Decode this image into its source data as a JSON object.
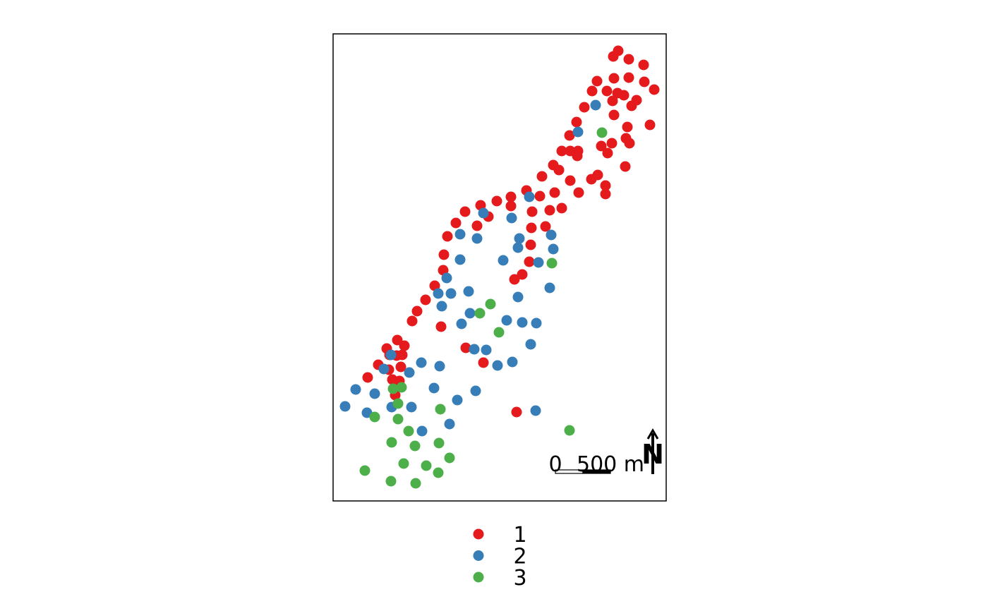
{
  "colors": {
    "1": "#E41A1C",
    "2": "#377EB8",
    "3": "#4DAF4A"
  },
  "scale_bar": {
    "label_zero": "0",
    "label_value": "500 m"
  },
  "north_arrow": {
    "label": "N"
  },
  "legend": {
    "items": [
      {
        "label": "1",
        "color": "#E41A1C"
      },
      {
        "label": "2",
        "color": "#377EB8"
      },
      {
        "label": "3",
        "color": "#4DAF4A"
      }
    ]
  },
  "points": {
    "1": [
      [
        876,
        72
      ],
      [
        869,
        80
      ],
      [
        891,
        84
      ],
      [
        912,
        92
      ],
      [
        846,
        115
      ],
      [
        870,
        111
      ],
      [
        891,
        110
      ],
      [
        913,
        116
      ],
      [
        839,
        129
      ],
      [
        860,
        129
      ],
      [
        875,
        132
      ],
      [
        884,
        135
      ],
      [
        868,
        143
      ],
      [
        902,
        142
      ],
      [
        927,
        127
      ],
      [
        895,
        150
      ],
      [
        828,
        152
      ],
      [
        870,
        163
      ],
      [
        817,
        173
      ],
      [
        889,
        180
      ],
      [
        921,
        177
      ],
      [
        807,
        192
      ],
      [
        887,
        196
      ],
      [
        892,
        203
      ],
      [
        852,
        207
      ],
      [
        867,
        203
      ],
      [
        861,
        217
      ],
      [
        796,
        214
      ],
      [
        808,
        214
      ],
      [
        819,
        214
      ],
      [
        818,
        221
      ],
      [
        886,
        236
      ],
      [
        784,
        234
      ],
      [
        792,
        241
      ],
      [
        768,
        250
      ],
      [
        838,
        254
      ],
      [
        847,
        248
      ],
      [
        808,
        256
      ],
      [
        858,
        263
      ],
      [
        858,
        275
      ],
      [
        820,
        273
      ],
      [
        786,
        273
      ],
      [
        746,
        270
      ],
      [
        724,
        279
      ],
      [
        765,
        278
      ],
      [
        704,
        285
      ],
      [
        681,
        291
      ],
      [
        724,
        292
      ],
      [
        659,
        300
      ],
      [
        692,
        307
      ],
      [
        754,
        300
      ],
      [
        779,
        298
      ],
      [
        796,
        295
      ],
      [
        646,
        316
      ],
      [
        676,
        320
      ],
      [
        753,
        323
      ],
      [
        773,
        321
      ],
      [
        634,
        335
      ],
      [
        752,
        347
      ],
      [
        629,
        361
      ],
      [
        750,
        371
      ],
      [
        628,
        383
      ],
      [
        740,
        389
      ],
      [
        729,
        396
      ],
      [
        616,
        405
      ],
      [
        603,
        425
      ],
      [
        591,
        441
      ],
      [
        584,
        455
      ],
      [
        625,
        463
      ],
      [
        563,
        482
      ],
      [
        548,
        494
      ],
      [
        573,
        490
      ],
      [
        660,
        493
      ],
      [
        570,
        503
      ],
      [
        562,
        504
      ],
      [
        552,
        503
      ],
      [
        685,
        514
      ],
      [
        536,
        517
      ],
      [
        551,
        524
      ],
      [
        568,
        520
      ],
      [
        521,
        535
      ],
      [
        556,
        538
      ],
      [
        566,
        540
      ],
      [
        560,
        560
      ],
      [
        732,
        584
      ]
    ],
    "2": [
      [
        844,
        149
      ],
      [
        819,
        187
      ],
      [
        750,
        279
      ],
      [
        685,
        302
      ],
      [
        725,
        309
      ],
      [
        652,
        332
      ],
      [
        676,
        338
      ],
      [
        736,
        338
      ],
      [
        781,
        333
      ],
      [
        734,
        351
      ],
      [
        784,
        353
      ],
      [
        652,
        368
      ],
      [
        713,
        369
      ],
      [
        763,
        372
      ],
      [
        633,
        394
      ],
      [
        779,
        408
      ],
      [
        664,
        413
      ],
      [
        621,
        416
      ],
      [
        639,
        416
      ],
      [
        734,
        421
      ],
      [
        626,
        434
      ],
      [
        666,
        444
      ],
      [
        654,
        459
      ],
      [
        718,
        454
      ],
      [
        740,
        457
      ],
      [
        760,
        458
      ],
      [
        752,
        488
      ],
      [
        672,
        495
      ],
      [
        689,
        496
      ],
      [
        554,
        503
      ],
      [
        597,
        514
      ],
      [
        623,
        519
      ],
      [
        705,
        518
      ],
      [
        726,
        513
      ],
      [
        544,
        523
      ],
      [
        580,
        528
      ],
      [
        504,
        552
      ],
      [
        615,
        550
      ],
      [
        674,
        554
      ],
      [
        531,
        558
      ],
      [
        648,
        567
      ],
      [
        489,
        576
      ],
      [
        555,
        577
      ],
      [
        583,
        577
      ],
      [
        759,
        582
      ],
      [
        520,
        585
      ],
      [
        637,
        601
      ],
      [
        598,
        611
      ]
    ],
    "3": [
      [
        853,
        188
      ],
      [
        782,
        373
      ],
      [
        695,
        431
      ],
      [
        680,
        444
      ],
      [
        707,
        471
      ],
      [
        569,
        549
      ],
      [
        557,
        551
      ],
      [
        564,
        572
      ],
      [
        624,
        580
      ],
      [
        531,
        591
      ],
      [
        564,
        594
      ],
      [
        579,
        611
      ],
      [
        807,
        610
      ],
      [
        555,
        627
      ],
      [
        622,
        628
      ],
      [
        588,
        632
      ],
      [
        637,
        649
      ],
      [
        572,
        657
      ],
      [
        604,
        660
      ],
      [
        517,
        667
      ],
      [
        621,
        670
      ],
      [
        554,
        682
      ],
      [
        589,
        685
      ]
    ]
  }
}
